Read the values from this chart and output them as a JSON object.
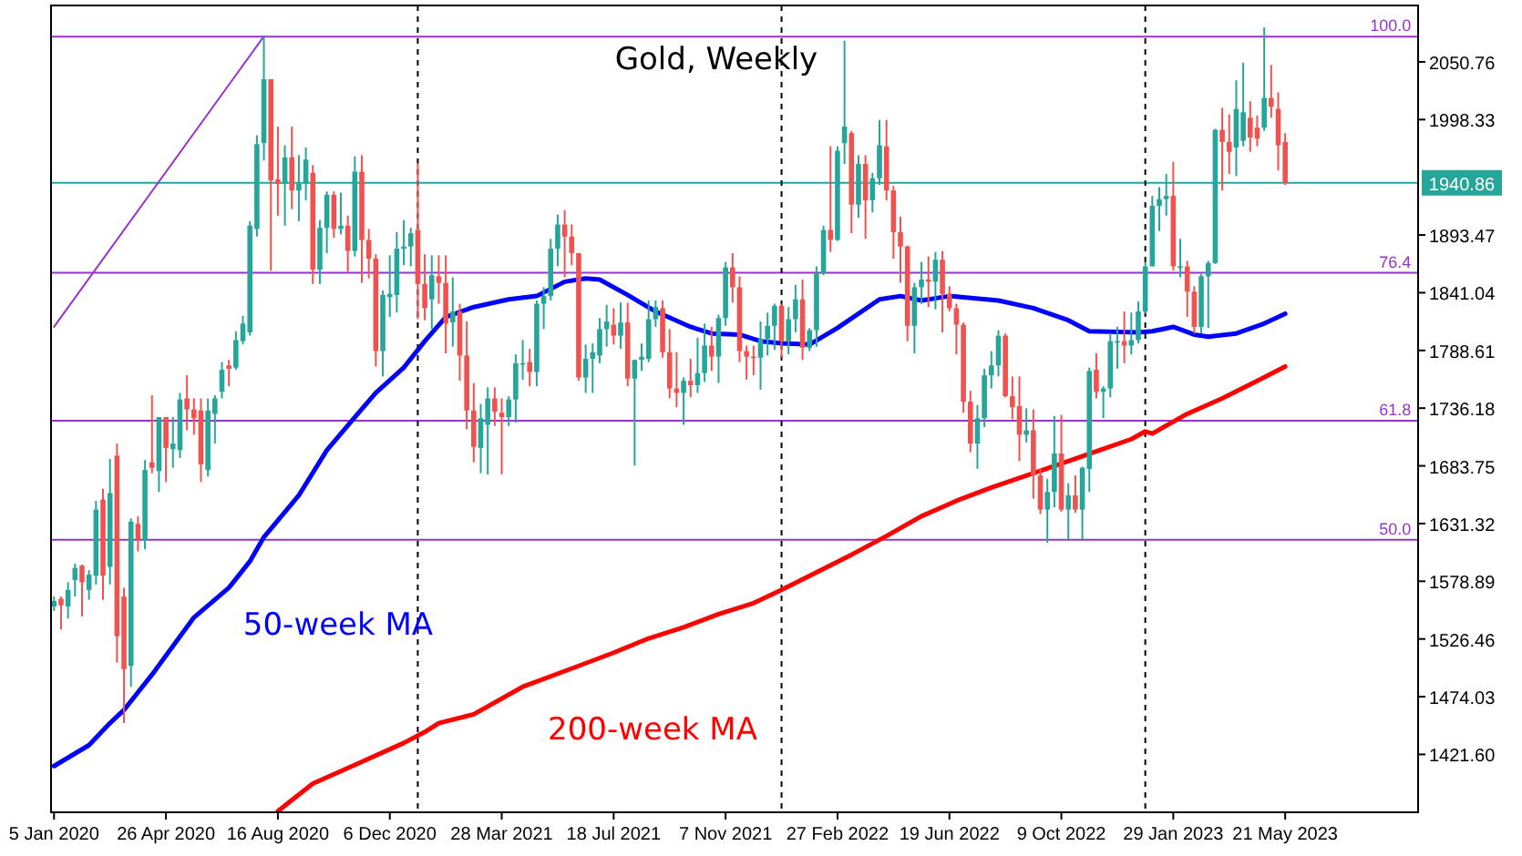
{
  "chart_data": {
    "type": "candlestick",
    "title": "Gold, Weekly",
    "x": [
      "2020-01-05",
      "2020-01-12",
      "2020-01-19",
      "2020-01-26",
      "2020-02-02",
      "2020-02-09",
      "2020-02-16",
      "2020-02-23",
      "2020-03-01",
      "2020-03-08",
      "2020-03-15",
      "2020-03-22",
      "2020-03-29",
      "2020-04-05",
      "2020-04-12",
      "2020-04-19",
      "2020-04-26",
      "2020-05-03",
      "2020-05-10",
      "2020-05-17",
      "2020-05-24",
      "2020-05-31",
      "2020-06-07",
      "2020-06-14",
      "2020-06-21",
      "2020-06-28",
      "2020-07-05",
      "2020-07-12",
      "2020-07-19",
      "2020-07-26",
      "2020-08-02",
      "2020-08-09",
      "2020-08-16",
      "2020-08-23",
      "2020-08-30",
      "2020-09-06",
      "2020-09-13",
      "2020-09-20",
      "2020-09-27",
      "2020-10-04",
      "2020-10-11",
      "2020-10-18",
      "2020-10-25",
      "2020-11-01",
      "2020-11-08",
      "2020-11-15",
      "2020-11-22",
      "2020-11-29",
      "2020-12-06",
      "2020-12-13",
      "2020-12-20",
      "2020-12-27",
      "2021-01-03",
      "2021-01-10",
      "2021-01-17",
      "2021-01-24",
      "2021-01-31",
      "2021-02-07",
      "2021-02-14",
      "2021-02-21",
      "2021-02-28",
      "2021-03-07",
      "2021-03-14",
      "2021-03-21",
      "2021-03-28",
      "2021-04-04",
      "2021-04-11",
      "2021-04-18",
      "2021-04-25",
      "2021-05-02",
      "2021-05-09",
      "2021-05-16",
      "2021-05-23",
      "2021-05-30",
      "2021-06-06",
      "2021-06-13",
      "2021-06-20",
      "2021-06-27",
      "2021-07-04",
      "2021-07-11",
      "2021-07-18",
      "2021-07-25",
      "2021-08-01",
      "2021-08-08",
      "2021-08-15",
      "2021-08-22",
      "2021-08-29",
      "2021-09-05",
      "2021-09-12",
      "2021-09-19",
      "2021-09-26",
      "2021-10-03",
      "2021-10-10",
      "2021-10-17",
      "2021-10-24",
      "2021-10-31",
      "2021-11-07",
      "2021-11-14",
      "2021-11-21",
      "2021-11-28",
      "2021-12-05",
      "2021-12-12",
      "2021-12-19",
      "2021-12-26",
      "2022-01-02",
      "2022-01-09",
      "2022-01-16",
      "2022-01-23",
      "2022-01-30",
      "2022-02-06",
      "2022-02-13",
      "2022-02-20",
      "2022-02-27",
      "2022-03-06",
      "2022-03-13",
      "2022-03-20",
      "2022-03-27",
      "2022-04-03",
      "2022-04-10",
      "2022-04-17",
      "2022-04-24",
      "2022-05-01",
      "2022-05-08",
      "2022-05-15",
      "2022-05-22",
      "2022-05-29",
      "2022-06-05",
      "2022-06-12",
      "2022-06-19",
      "2022-06-26",
      "2022-07-03",
      "2022-07-10",
      "2022-07-17",
      "2022-07-24",
      "2022-07-31",
      "2022-08-07",
      "2022-08-14",
      "2022-08-21",
      "2022-08-28",
      "2022-09-04",
      "2022-09-11",
      "2022-09-18",
      "2022-09-25",
      "2022-10-02",
      "2022-10-09",
      "2022-10-16",
      "2022-10-23",
      "2022-10-30",
      "2022-11-06",
      "2022-11-13",
      "2022-11-20",
      "2022-11-27",
      "2022-12-04",
      "2022-12-11",
      "2022-12-18",
      "2022-12-25",
      "2023-01-01",
      "2023-01-08",
      "2023-01-15",
      "2023-01-22",
      "2023-01-29",
      "2023-02-05",
      "2023-02-12",
      "2023-02-19",
      "2023-02-26",
      "2023-03-05",
      "2023-03-12",
      "2023-03-19",
      "2023-03-26",
      "2023-04-02",
      "2023-04-09",
      "2023-04-16",
      "2023-04-23",
      "2023-04-30",
      "2023-05-07",
      "2023-05-14",
      "2023-05-21"
    ],
    "ohlc": [
      [
        1556,
        1565,
        1552,
        1561
      ],
      [
        1563,
        1565,
        1535,
        1557
      ],
      [
        1556,
        1578,
        1545,
        1571
      ],
      [
        1580,
        1595,
        1565,
        1591
      ],
      [
        1593,
        1594,
        1547,
        1578
      ],
      [
        1571,
        1589,
        1562,
        1585
      ],
      [
        1584,
        1652,
        1576,
        1644
      ],
      [
        1653,
        1663,
        1562,
        1584
      ],
      [
        1592,
        1690,
        1576,
        1659
      ],
      [
        1693,
        1704,
        1505,
        1529
      ],
      [
        1565,
        1573,
        1450,
        1499
      ],
      [
        1502,
        1636,
        1483,
        1633
      ],
      [
        1631,
        1638,
        1606,
        1617
      ],
      [
        1616,
        1689,
        1608,
        1680
      ],
      [
        1687,
        1748,
        1677,
        1682
      ],
      [
        1679,
        1728,
        1660,
        1728
      ],
      [
        1728,
        1728,
        1669,
        1700
      ],
      [
        1699,
        1728,
        1682,
        1704
      ],
      [
        1698,
        1750,
        1691,
        1744
      ],
      [
        1745,
        1766,
        1716,
        1735
      ],
      [
        1735,
        1745,
        1712,
        1727
      ],
      [
        1734,
        1745,
        1669,
        1685
      ],
      [
        1680,
        1745,
        1674,
        1734
      ],
      [
        1731,
        1748,
        1704,
        1745
      ],
      [
        1751,
        1778,
        1745,
        1771
      ],
      [
        1775,
        1780,
        1756,
        1772
      ],
      [
        1773,
        1806,
        1771,
        1798
      ],
      [
        1797,
        1820,
        1794,
        1813
      ],
      [
        1805,
        1906,
        1802,
        1902
      ],
      [
        1899,
        1984,
        1892,
        1976
      ],
      [
        1977,
        2074,
        1961,
        2035
      ],
      [
        2035,
        2035,
        1861,
        1943
      ],
      [
        1944,
        1992,
        1911,
        1940
      ],
      [
        1940,
        1975,
        1902,
        1964
      ],
      [
        1964,
        1992,
        1917,
        1934
      ],
      [
        1934,
        1966,
        1906,
        1940
      ],
      [
        1940,
        1973,
        1925,
        1962
      ],
      [
        1950,
        1957,
        1849,
        1862
      ],
      [
        1862,
        1907,
        1849,
        1900
      ],
      [
        1900,
        1933,
        1877,
        1930
      ],
      [
        1930,
        1933,
        1891,
        1899
      ],
      [
        1899,
        1932,
        1894,
        1902
      ],
      [
        1902,
        1911,
        1860,
        1879
      ],
      [
        1879,
        1965,
        1874,
        1951
      ],
      [
        1951,
        1966,
        1850,
        1889
      ],
      [
        1889,
        1899,
        1854,
        1872
      ],
      [
        1872,
        1876,
        1774,
        1788
      ],
      [
        1788,
        1843,
        1765,
        1839
      ],
      [
        1837,
        1875,
        1819,
        1840
      ],
      [
        1839,
        1896,
        1823,
        1881
      ],
      [
        1881,
        1907,
        1866,
        1883
      ],
      [
        1883,
        1900,
        1865,
        1895
      ],
      [
        1898,
        1959,
        1817,
        1849
      ],
      [
        1849,
        1876,
        1816,
        1827
      ],
      [
        1835,
        1875,
        1808,
        1857
      ],
      [
        1856,
        1875,
        1831,
        1850
      ],
      [
        1850,
        1875,
        1786,
        1813
      ],
      [
        1814,
        1855,
        1792,
        1824
      ],
      [
        1824,
        1831,
        1761,
        1784
      ],
      [
        1784,
        1815,
        1717,
        1734
      ],
      [
        1734,
        1759,
        1687,
        1701
      ],
      [
        1700,
        1740,
        1677,
        1727
      ],
      [
        1721,
        1755,
        1676,
        1745
      ],
      [
        1745,
        1755,
        1720,
        1733
      ],
      [
        1732,
        1745,
        1676,
        1728
      ],
      [
        1728,
        1747,
        1720,
        1744
      ],
      [
        1744,
        1785,
        1723,
        1777
      ],
      [
        1777,
        1798,
        1762,
        1777
      ],
      [
        1778,
        1790,
        1756,
        1769
      ],
      [
        1769,
        1834,
        1756,
        1831
      ],
      [
        1831,
        1846,
        1808,
        1838
      ],
      [
        1838,
        1890,
        1834,
        1881
      ],
      [
        1881,
        1912,
        1865,
        1903
      ],
      [
        1903,
        1916,
        1855,
        1892
      ],
      [
        1892,
        1903,
        1866,
        1877
      ],
      [
        1877,
        1877,
        1761,
        1764
      ],
      [
        1764,
        1794,
        1750,
        1781
      ],
      [
        1781,
        1795,
        1750,
        1787
      ],
      [
        1784,
        1818,
        1777,
        1808
      ],
      [
        1808,
        1830,
        1792,
        1815
      ],
      [
        1812,
        1827,
        1794,
        1802
      ],
      [
        1802,
        1832,
        1790,
        1814
      ],
      [
        1814,
        1832,
        1756,
        1763
      ],
      [
        1763,
        1780,
        1684,
        1780
      ],
      [
        1780,
        1795,
        1770,
        1783
      ],
      [
        1781,
        1834,
        1778,
        1817
      ],
      [
        1817,
        1834,
        1810,
        1828
      ],
      [
        1827,
        1834,
        1782,
        1787
      ],
      [
        1787,
        1808,
        1745,
        1754
      ],
      [
        1754,
        1787,
        1737,
        1750
      ],
      [
        1750,
        1764,
        1721,
        1761
      ],
      [
        1761,
        1781,
        1746,
        1757
      ],
      [
        1757,
        1800,
        1750,
        1768
      ],
      [
        1768,
        1813,
        1760,
        1793
      ],
      [
        1793,
        1810,
        1770,
        1783
      ],
      [
        1783,
        1821,
        1759,
        1818
      ],
      [
        1818,
        1869,
        1811,
        1864
      ],
      [
        1864,
        1877,
        1832,
        1846
      ],
      [
        1846,
        1856,
        1778,
        1788
      ],
      [
        1788,
        1793,
        1762,
        1783
      ],
      [
        1783,
        1793,
        1766,
        1782
      ],
      [
        1782,
        1815,
        1753,
        1799
      ],
      [
        1799,
        1823,
        1784,
        1811
      ],
      [
        1811,
        1831,
        1789,
        1829
      ],
      [
        1829,
        1831,
        1782,
        1797
      ],
      [
        1797,
        1828,
        1785,
        1817
      ],
      [
        1817,
        1848,
        1805,
        1835
      ],
      [
        1835,
        1853,
        1780,
        1791
      ],
      [
        1791,
        1809,
        1788,
        1807
      ],
      [
        1807,
        1865,
        1792,
        1859
      ],
      [
        1859,
        1902,
        1857,
        1898
      ],
      [
        1898,
        1974,
        1878,
        1889
      ],
      [
        1889,
        1974,
        1888,
        1970
      ],
      [
        1977,
        2070,
        1958,
        1992
      ],
      [
        1986,
        1988,
        1895,
        1921
      ],
      [
        1921,
        1966,
        1909,
        1958
      ],
      [
        1958,
        1966,
        1890,
        1925
      ],
      [
        1925,
        1950,
        1914,
        1945
      ],
      [
        1945,
        1998,
        1939,
        1975
      ],
      [
        1974,
        1998,
        1925,
        1934
      ],
      [
        1934,
        1938,
        1872,
        1896
      ],
      [
        1896,
        1910,
        1850,
        1883
      ],
      [
        1883,
        1884,
        1797,
        1811
      ],
      [
        1811,
        1850,
        1786,
        1846
      ],
      [
        1846,
        1869,
        1831,
        1853
      ],
      [
        1853,
        1874,
        1828,
        1851
      ],
      [
        1851,
        1878,
        1826,
        1871
      ],
      [
        1871,
        1879,
        1805,
        1840
      ],
      [
        1840,
        1847,
        1824,
        1827
      ],
      [
        1827,
        1831,
        1785,
        1812
      ],
      [
        1812,
        1814,
        1732,
        1742
      ],
      [
        1742,
        1752,
        1696,
        1704
      ],
      [
        1704,
        1739,
        1681,
        1727
      ],
      [
        1727,
        1772,
        1719,
        1766
      ],
      [
        1766,
        1788,
        1754,
        1775
      ],
      [
        1775,
        1807,
        1765,
        1802
      ],
      [
        1802,
        1804,
        1746,
        1747
      ],
      [
        1747,
        1765,
        1726,
        1737
      ],
      [
        1738,
        1765,
        1688,
        1712
      ],
      [
        1712,
        1736,
        1705,
        1716
      ],
      [
        1716,
        1735,
        1654,
        1675
      ],
      [
        1675,
        1681,
        1640,
        1644
      ],
      [
        1644,
        1672,
        1614,
        1660
      ],
      [
        1660,
        1729,
        1646,
        1695
      ],
      [
        1695,
        1730,
        1642,
        1644
      ],
      [
        1644,
        1668,
        1617,
        1657
      ],
      [
        1657,
        1675,
        1641,
        1644
      ],
      [
        1644,
        1683,
        1617,
        1682
      ],
      [
        1681,
        1773,
        1660,
        1770
      ],
      [
        1771,
        1786,
        1745,
        1751
      ],
      [
        1751,
        1756,
        1727,
        1754
      ],
      [
        1754,
        1804,
        1746,
        1797
      ],
      [
        1797,
        1810,
        1772,
        1797
      ],
      [
        1797,
        1824,
        1777,
        1793
      ],
      [
        1793,
        1823,
        1785,
        1798
      ],
      [
        1798,
        1833,
        1795,
        1824
      ],
      [
        1824,
        1869,
        1822,
        1865
      ],
      [
        1865,
        1929,
        1865,
        1920
      ],
      [
        1920,
        1937,
        1897,
        1926
      ],
      [
        1926,
        1949,
        1911,
        1929
      ],
      [
        1929,
        1960,
        1861,
        1865
      ],
      [
        1865,
        1890,
        1855,
        1865
      ],
      [
        1865,
        1870,
        1819,
        1842
      ],
      [
        1842,
        1847,
        1804,
        1810
      ],
      [
        1810,
        1858,
        1804,
        1856
      ],
      [
        1856,
        1870,
        1809,
        1868
      ],
      [
        1868,
        1990,
        1867,
        1989
      ],
      [
        1989,
        2009,
        1934,
        1978
      ],
      [
        1978,
        2003,
        1949,
        1969
      ],
      [
        1973,
        2034,
        1947,
        2008
      ],
      [
        1979,
        2050,
        1974,
        2005
      ],
      [
        2000,
        2015,
        1969,
        1982
      ],
      [
        1991,
        2002,
        1974,
        1981
      ],
      [
        1991,
        2082,
        1988,
        2018
      ],
      [
        2018,
        2048,
        2000,
        2010
      ],
      [
        2008,
        2023,
        1952,
        1975
      ],
      [
        1978,
        1986,
        1939,
        1940.86
      ]
    ],
    "series": [
      {
        "name": "50-week MA",
        "type": "line",
        "color": "#0000ff",
        "x": [
          "2020-01-05",
          "2020-02-09",
          "2020-03-01",
          "2020-03-15",
          "2020-04-12",
          "2020-05-24",
          "2020-06-28",
          "2020-07-19",
          "2020-08-02",
          "2020-09-06",
          "2020-10-04",
          "2020-11-01",
          "2020-11-22",
          "2020-12-20",
          "2021-01-10",
          "2021-01-31",
          "2021-02-28",
          "2021-04-04",
          "2021-05-02",
          "2021-05-30",
          "2021-06-20",
          "2021-07-04",
          "2021-08-01",
          "2021-08-29",
          "2021-10-03",
          "2021-10-24",
          "2021-11-21",
          "2021-12-12",
          "2022-01-02",
          "2022-01-30",
          "2022-02-27",
          "2022-04-10",
          "2022-05-01",
          "2022-05-22",
          "2022-06-19",
          "2022-08-07",
          "2022-09-11",
          "2022-10-16",
          "2022-11-06",
          "2022-12-25",
          "2023-01-08",
          "2023-01-29",
          "2023-02-19",
          "2023-03-05",
          "2023-04-02",
          "2023-04-30",
          "2023-05-21"
        ],
        "values": [
          1411,
          1430,
          1450,
          1462,
          1494,
          1546,
          1573,
          1597,
          1619,
          1657,
          1698,
          1728,
          1750,
          1773,
          1797,
          1819,
          1828,
          1835,
          1838,
          1851,
          1854,
          1853,
          1839,
          1824,
          1810,
          1804,
          1803,
          1797,
          1795,
          1794,
          1809,
          1835,
          1838,
          1834,
          1838,
          1834,
          1827,
          1816,
          1806,
          1805,
          1806,
          1810,
          1803,
          1801,
          1804,
          1813,
          1822
        ]
      },
      {
        "name": "200-week MA",
        "type": "line",
        "color": "#ff0000",
        "x": [
          "2020-08-16",
          "2020-09-20",
          "2020-11-01",
          "2020-12-20",
          "2021-01-10",
          "2021-01-24",
          "2021-02-28",
          "2021-04-18",
          "2021-06-13",
          "2021-07-18",
          "2021-08-22",
          "2021-09-26",
          "2021-10-31",
          "2021-12-05",
          "2022-01-02",
          "2022-02-06",
          "2022-03-13",
          "2022-04-17",
          "2022-05-22",
          "2022-06-26",
          "2022-07-31",
          "2022-09-11",
          "2022-10-16",
          "2022-11-13",
          "2022-12-18",
          "2023-01-01",
          "2023-01-08",
          "2023-02-12",
          "2023-03-19",
          "2023-04-23",
          "2023-05-21"
        ],
        "values": [
          1370,
          1395,
          1412,
          1432,
          1442,
          1450,
          1458,
          1483,
          1502,
          1514,
          1527,
          1537,
          1549,
          1559,
          1571,
          1587,
          1603,
          1620,
          1638,
          1652,
          1664,
          1677,
          1688,
          1697,
          1708,
          1715,
          1713,
          1731,
          1745,
          1761,
          1774
        ]
      },
      {
        "type": "line",
        "color": "#9932cc",
        "x": [
          "2020-01-05",
          "2020-08-02"
        ],
        "values": [
          1810,
          2074
        ]
      }
    ],
    "xlim": [
      "2020-01-02",
      "2023-10-01"
    ],
    "xticks": [
      {
        "value": "2020-01-05",
        "label": "5 Jan 2020"
      },
      {
        "value": "2020-04-26",
        "label": "26 Apr 2020"
      },
      {
        "value": "2020-08-16",
        "label": "16 Aug 2020"
      },
      {
        "value": "2020-12-06",
        "label": "6 Dec 2020"
      },
      {
        "value": "2021-03-28",
        "label": "28 Mar 2021"
      },
      {
        "value": "2021-07-18",
        "label": "18 Jul 2021"
      },
      {
        "value": "2021-11-07",
        "label": "7 Nov 2021"
      },
      {
        "value": "2022-02-27",
        "label": "27 Feb 2022"
      },
      {
        "value": "2022-06-19",
        "label": "19 Jun 2022"
      },
      {
        "value": "2022-10-09",
        "label": "9 Oct 2022"
      },
      {
        "value": "2023-01-29",
        "label": "29 Jan 2023"
      },
      {
        "value": "2023-05-21",
        "label": "21 May 2023"
      }
    ],
    "ylim": [
      1369,
      2102
    ],
    "yticks": [
      2050.76,
      1998.33,
      1893.47,
      1841.04,
      1788.61,
      1736.18,
      1683.75,
      1631.32,
      1578.89,
      1526.46,
      1474.03,
      {
        "value": 1421.6,
        "label": "1421.60"
      }
    ],
    "ref_lines": [
      {
        "axis": "y",
        "value": 2073.7,
        "color": "#9932cc"
      },
      {
        "axis": "y",
        "value": 1859.1,
        "color": "#9932cc"
      },
      {
        "axis": "y",
        "value": 1724.7,
        "color": "#9932cc"
      },
      {
        "axis": "y",
        "value": 1616.6,
        "color": "#9932cc"
      },
      {
        "axis": "y",
        "value": 1940.86,
        "label": "1940.86",
        "color": "#26a69a"
      },
      {
        "axis": "x",
        "value": "2021-01-03",
        "color": "#000000",
        "line_style": "dashed"
      },
      {
        "axis": "x",
        "value": "2022-01-02",
        "color": "#000000",
        "line_style": "dashed"
      },
      {
        "axis": "x",
        "value": "2023-01-01",
        "color": "#000000",
        "line_style": "dashed"
      }
    ],
    "annotations": [
      {
        "text": "100.0",
        "x": "2023-09-24",
        "y": 2073.7
      },
      {
        "text": "76.4",
        "x": "2023-09-24",
        "y": 1859.1
      },
      {
        "text": "61.8",
        "x": "2023-09-24",
        "y": 1724.7
      },
      {
        "text": "50.0",
        "x": "2023-09-24",
        "y": 1616.6
      }
    ],
    "grid": false
  }
}
